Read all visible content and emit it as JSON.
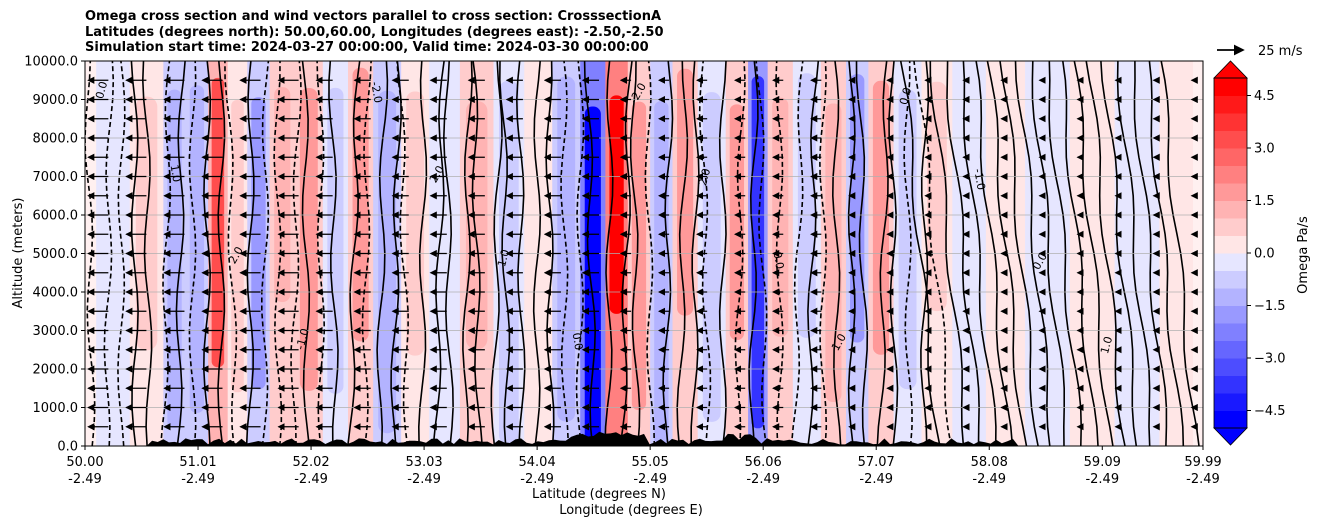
{
  "chart_data": {
    "type": "contour",
    "title_lines": [
      "Omega cross section and wind vectors parallel to cross section: CrosssectionA",
      "Latitudes (degrees north): 50.00,60.00, Longitudes (degrees east): -2.50,-2.50",
      "Simulation start time: 2024-03-27 00:00:00, Valid time: 2024-03-30 00:00:00"
    ],
    "ylabel": "Altitude (meters)",
    "xlabel_lines": [
      "Latitude (degrees N)",
      "Longitude (degrees E)"
    ],
    "ylim": [
      0,
      10000
    ],
    "yticks": [
      "0.0",
      "1000.0",
      "2000.0",
      "3000.0",
      "4000.0",
      "5000.0",
      "6000.0",
      "7000.0",
      "8000.0",
      "9000.0",
      "10000.0"
    ],
    "xlim": [
      50.0,
      59.99
    ],
    "xticks": [
      {
        "lat": "50.00",
        "lon": "-2.49"
      },
      {
        "lat": "51.01",
        "lon": "-2.49"
      },
      {
        "lat": "52.02",
        "lon": "-2.49"
      },
      {
        "lat": "53.03",
        "lon": "-2.49"
      },
      {
        "lat": "54.04",
        "lon": "-2.49"
      },
      {
        "lat": "55.05",
        "lon": "-2.49"
      },
      {
        "lat": "56.06",
        "lon": "-2.49"
      },
      {
        "lat": "57.07",
        "lon": "-2.49"
      },
      {
        "lat": "58.08",
        "lon": "-2.49"
      },
      {
        "lat": "59.09",
        "lon": "-2.49"
      },
      {
        "lat": "59.99",
        "lon": "-2.49"
      }
    ],
    "colorbar": {
      "label": "Omega Pa/s",
      "range": [
        -5.0,
        5.0
      ],
      "levels": 20,
      "extend": "both",
      "ticks": [
        "4.5",
        "3.0",
        "1.5",
        "0.0",
        "−1.5",
        "−3.0",
        "−4.5"
      ],
      "colors": {
        "negative": "#0000ff",
        "zero": "#ffffff",
        "positive": "#ff0000"
      }
    },
    "quiver_key": "25 m/s",
    "contour_labels": [
      "0.0",
      "1.0",
      "2.0",
      "-1.0",
      "-2.0",
      "2.0",
      "1.0",
      "0.0",
      "-2.0",
      "2.0",
      "0.0",
      "1.0",
      "0.0",
      "-1.0",
      "0.0",
      "1.0"
    ],
    "omega_columns": [
      {
        "lat": 50.2,
        "value": -0.3
      },
      {
        "lat": 50.6,
        "value": 0.6
      },
      {
        "lat": 50.8,
        "value": -1.2
      },
      {
        "lat": 51.0,
        "value": -1.5
      },
      {
        "lat": 51.2,
        "value": 3.2
      },
      {
        "lat": 51.35,
        "value": 1.0
      },
      {
        "lat": 51.55,
        "value": -1.6
      },
      {
        "lat": 51.75,
        "value": 1.4
      },
      {
        "lat": 52.0,
        "value": 2.0
      },
      {
        "lat": 52.25,
        "value": -1.0
      },
      {
        "lat": 52.45,
        "value": 1.8
      },
      {
        "lat": 52.7,
        "value": -1.2
      },
      {
        "lat": 52.95,
        "value": 0.8
      },
      {
        "lat": 53.2,
        "value": -0.4
      },
      {
        "lat": 53.5,
        "value": 1.2
      },
      {
        "lat": 53.8,
        "value": -0.6
      },
      {
        "lat": 54.05,
        "value": 0.4
      },
      {
        "lat": 54.3,
        "value": -1.2
      },
      {
        "lat": 54.55,
        "value": -5.0
      },
      {
        "lat": 54.75,
        "value": 4.8
      },
      {
        "lat": 54.95,
        "value": 1.6
      },
      {
        "lat": 55.15,
        "value": -1.5
      },
      {
        "lat": 55.35,
        "value": 2.0
      },
      {
        "lat": 55.6,
        "value": -0.8
      },
      {
        "lat": 55.85,
        "value": 1.6
      },
      {
        "lat": 56.0,
        "value": -3.6
      },
      {
        "lat": 56.2,
        "value": 1.2
      },
      {
        "lat": 56.45,
        "value": -1.0
      },
      {
        "lat": 56.7,
        "value": 1.2
      },
      {
        "lat": 56.9,
        "value": -1.6
      },
      {
        "lat": 57.1,
        "value": 1.8
      },
      {
        "lat": 57.35,
        "value": -1.0
      },
      {
        "lat": 57.6,
        "value": 1.0
      },
      {
        "lat": 57.9,
        "value": -0.5
      },
      {
        "lat": 58.2,
        "value": 0.3
      },
      {
        "lat": 58.6,
        "value": -0.2
      },
      {
        "lat": 59.0,
        "value": 0.4
      },
      {
        "lat": 59.4,
        "value": -0.1
      },
      {
        "lat": 59.8,
        "value": 0.2
      }
    ]
  }
}
